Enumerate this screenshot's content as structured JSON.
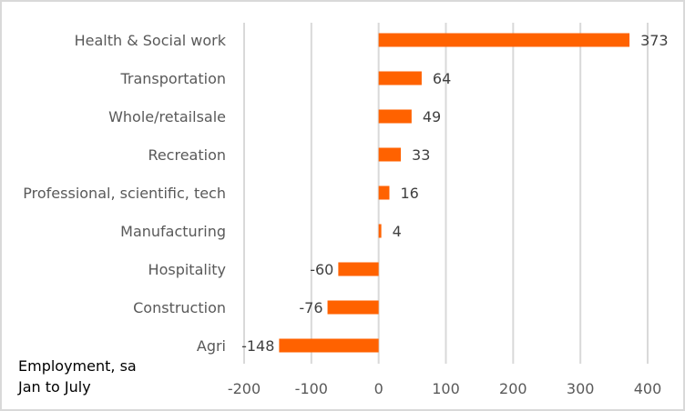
{
  "chart_data": {
    "type": "bar",
    "orientation": "horizontal",
    "categories": [
      "Health & Social work",
      "Transportation",
      "Whole/retailsale",
      "Recreation",
      "Professional, scientific, tech",
      "Manufacturing",
      "Hospitality",
      "Construction",
      "Agri"
    ],
    "values": [
      373,
      64,
      49,
      33,
      16,
      4,
      -60,
      -76,
      -148
    ],
    "xlim": [
      -200,
      400
    ],
    "xticks": [
      -200,
      -100,
      0,
      100,
      200,
      300,
      400
    ],
    "grid": true,
    "bar_color": "#ff6200",
    "annotation": [
      "Employment, sa",
      "Jan to July"
    ]
  }
}
